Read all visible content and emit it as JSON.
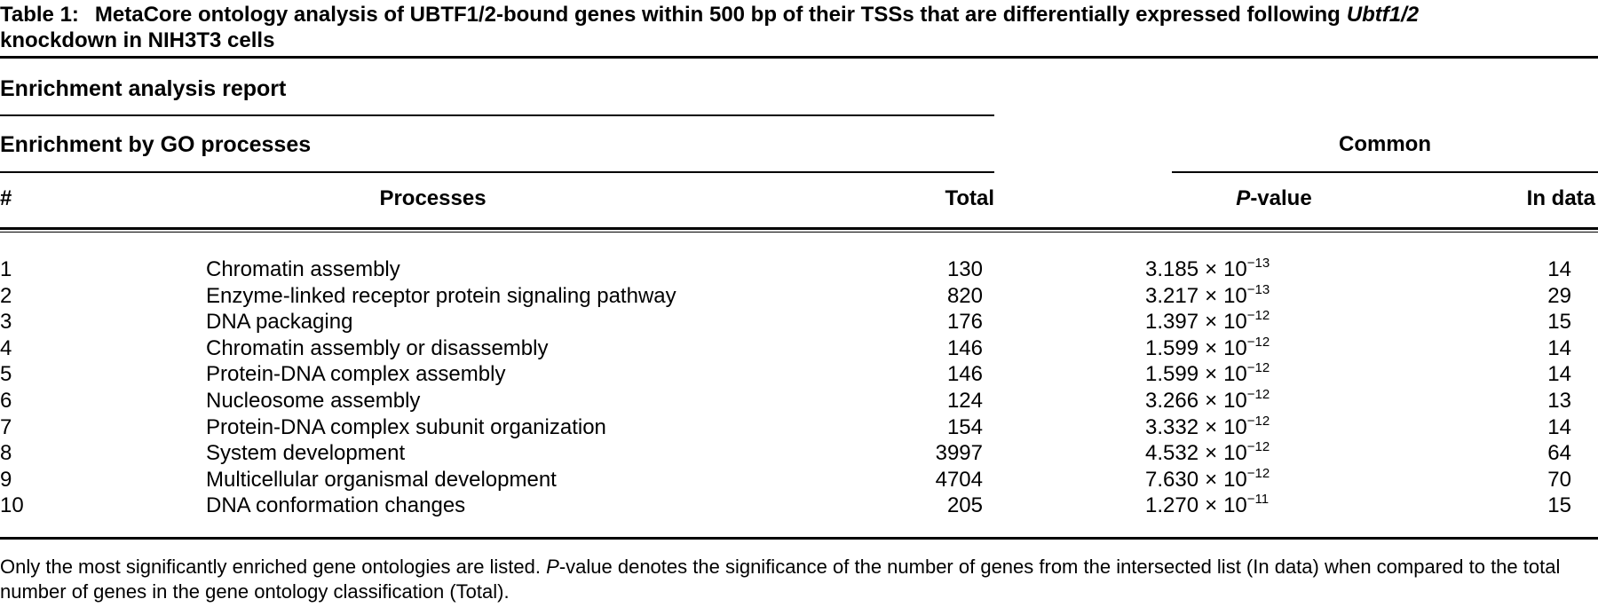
{
  "caption": {
    "label": "Table 1:",
    "text_before_italic": "MetaCore ontology analysis of UBTF1/2-bound genes within 500 bp of their TSSs that are differentially expressed following",
    "italic_term": "Ubtf1/2",
    "line2": "knockdown in NIH3T3 cells"
  },
  "report_title": "Enrichment analysis report",
  "section_title": "Enrichment by GO processes",
  "group_header": "Common",
  "columns": {
    "rank": "#",
    "processes": "Processes",
    "total": "Total",
    "pvalue_italic": "P",
    "pvalue_rest": "-value",
    "in_data": "In data"
  },
  "pvalue_format": {
    "times": "×",
    "base": "10"
  },
  "rows": [
    {
      "rank": "1",
      "process": "Chromatin assembly",
      "total": "130",
      "p_mantissa": "3.185",
      "p_exponent": "−13",
      "in_data": "14"
    },
    {
      "rank": "2",
      "process": "Enzyme-linked receptor protein signaling pathway",
      "total": "820",
      "p_mantissa": "3.217",
      "p_exponent": "−13",
      "in_data": "29"
    },
    {
      "rank": "3",
      "process": "DNA packaging",
      "total": "176",
      "p_mantissa": "1.397",
      "p_exponent": "−12",
      "in_data": "15"
    },
    {
      "rank": "4",
      "process": "Chromatin assembly or disassembly",
      "total": "146",
      "p_mantissa": "1.599",
      "p_exponent": "−12",
      "in_data": "14"
    },
    {
      "rank": "5",
      "process": "Protein-DNA complex assembly",
      "total": "146",
      "p_mantissa": "1.599",
      "p_exponent": "−12",
      "in_data": "14"
    },
    {
      "rank": "6",
      "process": "Nucleosome assembly",
      "total": "124",
      "p_mantissa": "3.266",
      "p_exponent": "−12",
      "in_data": "13"
    },
    {
      "rank": "7",
      "process": "Protein-DNA complex subunit organization",
      "total": "154",
      "p_mantissa": "3.332",
      "p_exponent": "−12",
      "in_data": "14"
    },
    {
      "rank": "8",
      "process": "System development",
      "total": "3997",
      "p_mantissa": "4.532",
      "p_exponent": "−12",
      "in_data": "64"
    },
    {
      "rank": "9",
      "process": "Multicellular organismal development",
      "total": "4704",
      "p_mantissa": "7.630",
      "p_exponent": "−12",
      "in_data": "70"
    },
    {
      "rank": "10",
      "process": "DNA conformation changes",
      "total": "205",
      "p_mantissa": "1.270",
      "p_exponent": "−11",
      "in_data": "15"
    }
  ],
  "footnote": {
    "before_italic": "Only the most significantly enriched gene ontologies are listed. ",
    "italic_term": "P",
    "after_italic": "-value denotes the significance of the number of genes from the intersected list (In data) when compared to the total number of genes in the gene ontology classification (Total)."
  },
  "colors": {
    "text": "#000000",
    "background": "#ffffff",
    "rule": "#000000"
  }
}
